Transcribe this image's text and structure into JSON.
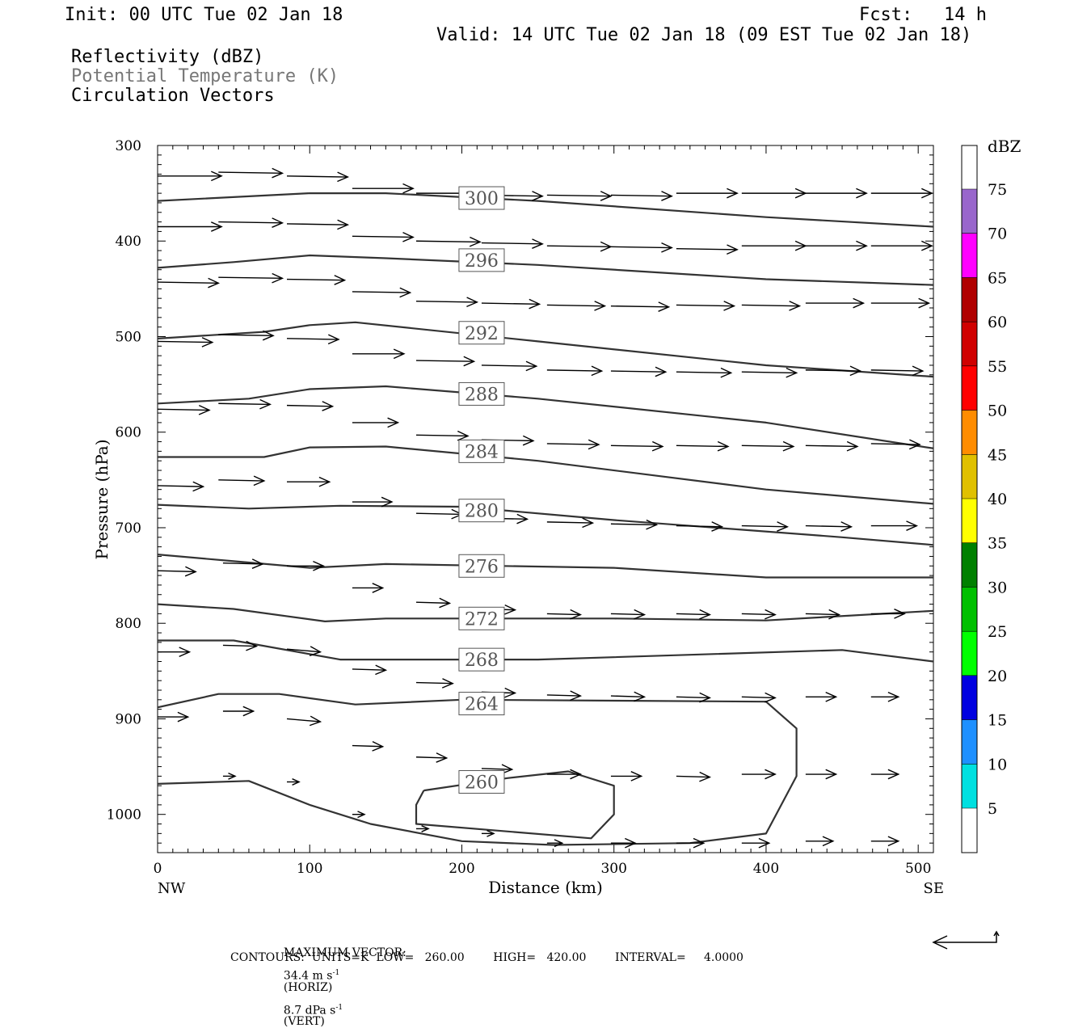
{
  "header": {
    "init": "Init: 00 UTC Tue 02 Jan 18",
    "fcst_label": "Fcst:",
    "fcst_value": "14 h",
    "valid": "Valid: 14 UTC Tue 02 Jan 18 (09 EST Tue 02 Jan 18)",
    "field1": "Reflectivity (dBZ)",
    "field2": "Potential Temperature (K)",
    "field3": "Circulation Vectors"
  },
  "footer": {
    "max_vector_label": "MAXIMUM VECTOR:",
    "max_vector_horiz": "34.4 m s",
    "horiz_tag": "(HORIZ)",
    "max_vector_vert": "8.7 dPa s",
    "vert_tag": "(VERT)",
    "contours": "CONTOURS:  UNITS=K  LOW=   260.00        HIGH=   420.00        INTERVAL=     4.0000"
  },
  "colors": {
    "contour": "#333333",
    "vector": "#000000",
    "isentrope_label_box": "#555555"
  },
  "chart_data": {
    "type": "cross-section",
    "xlabel": "Distance (km)",
    "ylabel": "Pressure (hPa)",
    "xlim": [
      0,
      510
    ],
    "ylim": [
      1040,
      300
    ],
    "x_ticks": [
      0,
      100,
      200,
      300,
      400,
      500
    ],
    "y_ticks": [
      300,
      400,
      500,
      600,
      700,
      800,
      900,
      1000
    ],
    "x_end_labels": {
      "left": "NW",
      "right": "SE"
    },
    "isentropes": [
      {
        "theta": 300,
        "label_x": 213,
        "label_p": 355,
        "points": [
          [
            0,
            358
          ],
          [
            100,
            350
          ],
          [
            150,
            350
          ],
          [
            250,
            358
          ],
          [
            400,
            375
          ],
          [
            510,
            385
          ]
        ]
      },
      {
        "theta": 296,
        "label_x": 213,
        "label_p": 420,
        "points": [
          [
            0,
            428
          ],
          [
            50,
            422
          ],
          [
            100,
            415
          ],
          [
            150,
            418
          ],
          [
            250,
            425
          ],
          [
            400,
            440
          ],
          [
            510,
            446
          ]
        ]
      },
      {
        "theta": 292,
        "label_x": 213,
        "label_p": 496,
        "points": [
          [
            0,
            502
          ],
          [
            70,
            495
          ],
          [
            100,
            488
          ],
          [
            130,
            485
          ],
          [
            250,
            505
          ],
          [
            400,
            530
          ],
          [
            510,
            542
          ]
        ]
      },
      {
        "theta": 288,
        "label_x": 213,
        "label_p": 560,
        "points": [
          [
            0,
            570
          ],
          [
            60,
            565
          ],
          [
            100,
            555
          ],
          [
            150,
            552
          ],
          [
            250,
            565
          ],
          [
            400,
            590
          ],
          [
            510,
            617
          ]
        ]
      },
      {
        "theta": 284,
        "label_x": 213,
        "label_p": 620,
        "points": [
          [
            0,
            626
          ],
          [
            70,
            626
          ],
          [
            100,
            616
          ],
          [
            150,
            615
          ],
          [
            250,
            630
          ],
          [
            400,
            660
          ],
          [
            510,
            675
          ]
        ]
      },
      {
        "theta": 280,
        "label_x": 213,
        "label_p": 682,
        "points": [
          [
            0,
            676
          ],
          [
            60,
            680
          ],
          [
            120,
            677
          ],
          [
            200,
            678
          ],
          [
            300,
            692
          ],
          [
            450,
            710
          ],
          [
            510,
            718
          ]
        ]
      },
      {
        "theta": 276,
        "label_x": 213,
        "label_p": 740,
        "points": [
          [
            0,
            728
          ],
          [
            50,
            735
          ],
          [
            100,
            742
          ],
          [
            150,
            738
          ],
          [
            300,
            742
          ],
          [
            400,
            752
          ],
          [
            510,
            752
          ]
        ]
      },
      {
        "theta": 272,
        "label_x": 213,
        "label_p": 795,
        "points": [
          [
            0,
            780
          ],
          [
            50,
            785
          ],
          [
            110,
            798
          ],
          [
            150,
            795
          ],
          [
            300,
            795
          ],
          [
            400,
            797
          ],
          [
            510,
            787
          ]
        ]
      },
      {
        "theta": 268,
        "label_x": 213,
        "label_p": 838,
        "points": [
          [
            0,
            818
          ],
          [
            50,
            818
          ],
          [
            120,
            838
          ],
          [
            250,
            838
          ],
          [
            450,
            828
          ],
          [
            510,
            840
          ]
        ]
      },
      {
        "theta": 264,
        "label_x": 213,
        "label_p": 884,
        "points": [
          [
            0,
            888
          ],
          [
            40,
            874
          ],
          [
            80,
            874
          ],
          [
            130,
            885
          ],
          [
            200,
            880
          ],
          [
            400,
            882
          ],
          [
            420,
            910
          ],
          [
            420,
            960
          ],
          [
            400,
            1020
          ],
          [
            350,
            1030
          ],
          [
            260,
            1032
          ],
          [
            200,
            1028
          ],
          [
            140,
            1010
          ],
          [
            100,
            990
          ],
          [
            60,
            965
          ],
          [
            0,
            968
          ]
        ]
      },
      {
        "theta": 260,
        "label_x": 213,
        "label_p": 966,
        "points": [
          [
            175,
            975
          ],
          [
            230,
            962
          ],
          [
            270,
            955
          ],
          [
            300,
            970
          ],
          [
            300,
            1000
          ],
          [
            285,
            1025
          ],
          [
            170,
            1010
          ],
          [
            170,
            990
          ],
          [
            175,
            975
          ]
        ]
      }
    ],
    "wind_vectors": [
      {
        "x": 0,
        "p": 332,
        "u": 42,
        "w": 0
      },
      {
        "x": 40,
        "p": 328,
        "u": 42,
        "w": 1
      },
      {
        "x": 85,
        "p": 332,
        "u": 40,
        "w": 1
      },
      {
        "x": 128,
        "p": 345,
        "u": 40,
        "w": 0
      },
      {
        "x": 170,
        "p": 350,
        "u": 42,
        "w": 0
      },
      {
        "x": 213,
        "p": 352,
        "u": 40,
        "w": 1
      },
      {
        "x": 256,
        "p": 352,
        "u": 42,
        "w": 1
      },
      {
        "x": 298,
        "p": 352,
        "u": 40,
        "w": 1
      },
      {
        "x": 341,
        "p": 350,
        "u": 40,
        "w": 0
      },
      {
        "x": 384,
        "p": 350,
        "u": 42,
        "w": 0
      },
      {
        "x": 426,
        "p": 350,
        "u": 40,
        "w": 0
      },
      {
        "x": 469,
        "p": 350,
        "u": 40,
        "w": 0
      },
      {
        "x": 0,
        "p": 385,
        "u": 42,
        "w": 0
      },
      {
        "x": 40,
        "p": 380,
        "u": 42,
        "w": 1
      },
      {
        "x": 85,
        "p": 382,
        "u": 40,
        "w": 1
      },
      {
        "x": 128,
        "p": 395,
        "u": 40,
        "w": 1
      },
      {
        "x": 170,
        "p": 400,
        "u": 42,
        "w": 1
      },
      {
        "x": 213,
        "p": 402,
        "u": 40,
        "w": 1
      },
      {
        "x": 256,
        "p": 405,
        "u": 42,
        "w": 1
      },
      {
        "x": 298,
        "p": 406,
        "u": 40,
        "w": 1
      },
      {
        "x": 341,
        "p": 408,
        "u": 40,
        "w": 1
      },
      {
        "x": 384,
        "p": 405,
        "u": 42,
        "w": 0
      },
      {
        "x": 426,
        "p": 405,
        "u": 40,
        "w": 0
      },
      {
        "x": 469,
        "p": 405,
        "u": 40,
        "w": 0
      },
      {
        "x": 0,
        "p": 443,
        "u": 40,
        "w": 1
      },
      {
        "x": 40,
        "p": 438,
        "u": 42,
        "w": 1
      },
      {
        "x": 85,
        "p": 440,
        "u": 38,
        "w": 1
      },
      {
        "x": 128,
        "p": 453,
        "u": 38,
        "w": 1
      },
      {
        "x": 170,
        "p": 463,
        "u": 40,
        "w": 1
      },
      {
        "x": 213,
        "p": 465,
        "u": 38,
        "w": 1
      },
      {
        "x": 256,
        "p": 467,
        "u": 38,
        "w": 1
      },
      {
        "x": 298,
        "p": 468,
        "u": 38,
        "w": 1
      },
      {
        "x": 341,
        "p": 467,
        "u": 38,
        "w": 1
      },
      {
        "x": 384,
        "p": 467,
        "u": 38,
        "w": 1
      },
      {
        "x": 426,
        "p": 465,
        "u": 38,
        "w": 0
      },
      {
        "x": 469,
        "p": 465,
        "u": 38,
        "w": 0
      },
      {
        "x": 0,
        "p": 505,
        "u": 36,
        "w": 1
      },
      {
        "x": 40,
        "p": 498,
        "u": 36,
        "w": 1
      },
      {
        "x": 85,
        "p": 502,
        "u": 34,
        "w": 1
      },
      {
        "x": 128,
        "p": 518,
        "u": 34,
        "w": 0
      },
      {
        "x": 170,
        "p": 525,
        "u": 38,
        "w": 1
      },
      {
        "x": 213,
        "p": 530,
        "u": 36,
        "w": 1
      },
      {
        "x": 256,
        "p": 535,
        "u": 36,
        "w": 1
      },
      {
        "x": 298,
        "p": 536,
        "u": 36,
        "w": 1
      },
      {
        "x": 341,
        "p": 537,
        "u": 36,
        "w": 1
      },
      {
        "x": 384,
        "p": 537,
        "u": 36,
        "w": 1
      },
      {
        "x": 426,
        "p": 535,
        "u": 36,
        "w": 1
      },
      {
        "x": 469,
        "p": 535,
        "u": 34,
        "w": 1
      },
      {
        "x": 0,
        "p": 576,
        "u": 34,
        "w": 1
      },
      {
        "x": 40,
        "p": 570,
        "u": 34,
        "w": 1
      },
      {
        "x": 85,
        "p": 572,
        "u": 30,
        "w": 1
      },
      {
        "x": 128,
        "p": 590,
        "u": 30,
        "w": 0
      },
      {
        "x": 170,
        "p": 603,
        "u": 34,
        "w": 1
      },
      {
        "x": 213,
        "p": 608,
        "u": 34,
        "w": 1
      },
      {
        "x": 256,
        "p": 612,
        "u": 34,
        "w": 1
      },
      {
        "x": 298,
        "p": 614,
        "u": 34,
        "w": 1
      },
      {
        "x": 341,
        "p": 614,
        "u": 34,
        "w": 1
      },
      {
        "x": 384,
        "p": 614,
        "u": 34,
        "w": 1
      },
      {
        "x": 426,
        "p": 614,
        "u": 34,
        "w": 1
      },
      {
        "x": 469,
        "p": 612,
        "u": 32,
        "w": 1
      },
      {
        "x": 0,
        "p": 656,
        "u": 30,
        "w": 1
      },
      {
        "x": 40,
        "p": 650,
        "u": 30,
        "w": 1
      },
      {
        "x": 85,
        "p": 652,
        "u": 28,
        "w": 0
      },
      {
        "x": 128,
        "p": 673,
        "u": 26,
        "w": 0
      },
      {
        "x": 170,
        "p": 685,
        "u": 30,
        "w": 1
      },
      {
        "x": 213,
        "p": 690,
        "u": 30,
        "w": 1
      },
      {
        "x": 256,
        "p": 694,
        "u": 30,
        "w": 1
      },
      {
        "x": 298,
        "p": 696,
        "u": 30,
        "w": 1
      },
      {
        "x": 341,
        "p": 698,
        "u": 30,
        "w": 1
      },
      {
        "x": 384,
        "p": 698,
        "u": 30,
        "w": 1
      },
      {
        "x": 426,
        "p": 698,
        "u": 30,
        "w": 1
      },
      {
        "x": 469,
        "p": 698,
        "u": 30,
        "w": 0
      },
      {
        "x": 0,
        "p": 745,
        "u": 25,
        "w": 1
      },
      {
        "x": 43,
        "p": 737,
        "u": 26,
        "w": 1
      },
      {
        "x": 85,
        "p": 740,
        "u": 24,
        "w": 0
      },
      {
        "x": 128,
        "p": 763,
        "u": 20,
        "w": 0
      },
      {
        "x": 170,
        "p": 778,
        "u": 22,
        "w": 1
      },
      {
        "x": 213,
        "p": 785,
        "u": 22,
        "w": 1
      },
      {
        "x": 256,
        "p": 790,
        "u": 22,
        "w": 1
      },
      {
        "x": 298,
        "p": 790,
        "u": 22,
        "w": 1
      },
      {
        "x": 341,
        "p": 790,
        "u": 22,
        "w": 1
      },
      {
        "x": 384,
        "p": 790,
        "u": 22,
        "w": 1
      },
      {
        "x": 426,
        "p": 790,
        "u": 22,
        "w": 1
      },
      {
        "x": 469,
        "p": 790,
        "u": 22,
        "w": 0
      },
      {
        "x": 0,
        "p": 830,
        "u": 21,
        "w": 0
      },
      {
        "x": 43,
        "p": 823,
        "u": 22,
        "w": 1
      },
      {
        "x": 85,
        "p": 827,
        "u": 22,
        "w": 3
      },
      {
        "x": 128,
        "p": 848,
        "u": 22,
        "w": 1
      },
      {
        "x": 170,
        "p": 862,
        "u": 24,
        "w": 1
      },
      {
        "x": 213,
        "p": 872,
        "u": 22,
        "w": 1
      },
      {
        "x": 256,
        "p": 875,
        "u": 22,
        "w": 1
      },
      {
        "x": 298,
        "p": 876,
        "u": 22,
        "w": 1
      },
      {
        "x": 341,
        "p": 877,
        "u": 22,
        "w": 1
      },
      {
        "x": 384,
        "p": 877,
        "u": 22,
        "w": 1
      },
      {
        "x": 426,
        "p": 877,
        "u": 20,
        "w": 0
      },
      {
        "x": 469,
        "p": 877,
        "u": 18,
        "w": 0
      },
      {
        "x": 0,
        "p": 898,
        "u": 20,
        "w": 0
      },
      {
        "x": 43,
        "p": 892,
        "u": 20,
        "w": 0
      },
      {
        "x": 85,
        "p": 900,
        "u": 22,
        "w": 3
      },
      {
        "x": 128,
        "p": 928,
        "u": 20,
        "w": 1
      },
      {
        "x": 170,
        "p": 940,
        "u": 20,
        "w": 1
      },
      {
        "x": 213,
        "p": 952,
        "u": 20,
        "w": 1
      },
      {
        "x": 256,
        "p": 958,
        "u": 22,
        "w": 0
      },
      {
        "x": 298,
        "p": 960,
        "u": 20,
        "w": 0
      },
      {
        "x": 341,
        "p": 960,
        "u": 22,
        "w": 1
      },
      {
        "x": 384,
        "p": 958,
        "u": 22,
        "w": 0
      },
      {
        "x": 426,
        "p": 958,
        "u": 20,
        "w": 0
      },
      {
        "x": 469,
        "p": 958,
        "u": 18,
        "w": 0
      },
      {
        "x": 43,
        "p": 960,
        "u": 8,
        "w": 0
      },
      {
        "x": 85,
        "p": 966,
        "u": 8,
        "w": 0
      },
      {
        "x": 128,
        "p": 1000,
        "u": 8,
        "w": 0
      },
      {
        "x": 170,
        "p": 1015,
        "u": 8,
        "w": 0
      },
      {
        "x": 213,
        "p": 1020,
        "u": 8,
        "w": 0
      },
      {
        "x": 256,
        "p": 1030,
        "u": 10,
        "w": 0
      },
      {
        "x": 298,
        "p": 1030,
        "u": 16,
        "w": 0
      },
      {
        "x": 341,
        "p": 1030,
        "u": 18,
        "w": 0
      },
      {
        "x": 384,
        "p": 1030,
        "u": 18,
        "w": 0
      },
      {
        "x": 426,
        "p": 1028,
        "u": 18,
        "w": 0
      },
      {
        "x": 469,
        "p": 1028,
        "u": 18,
        "w": 0
      }
    ],
    "colorbar": {
      "units": "dBZ",
      "labels": [
        "5",
        "10",
        "15",
        "20",
        "25",
        "30",
        "35",
        "40",
        "45",
        "50",
        "55",
        "60",
        "65",
        "70",
        "75"
      ],
      "bins": [
        "#ffffff",
        "#00e0e0",
        "#1e90ff",
        "#0000e0",
        "#00ff00",
        "#00c000",
        "#008000",
        "#ffff00",
        "#e0c000",
        "#ff8c00",
        "#ff0000",
        "#d00000",
        "#b00000",
        "#ff00ff",
        "#9966cc",
        "#ffffff"
      ]
    }
  }
}
